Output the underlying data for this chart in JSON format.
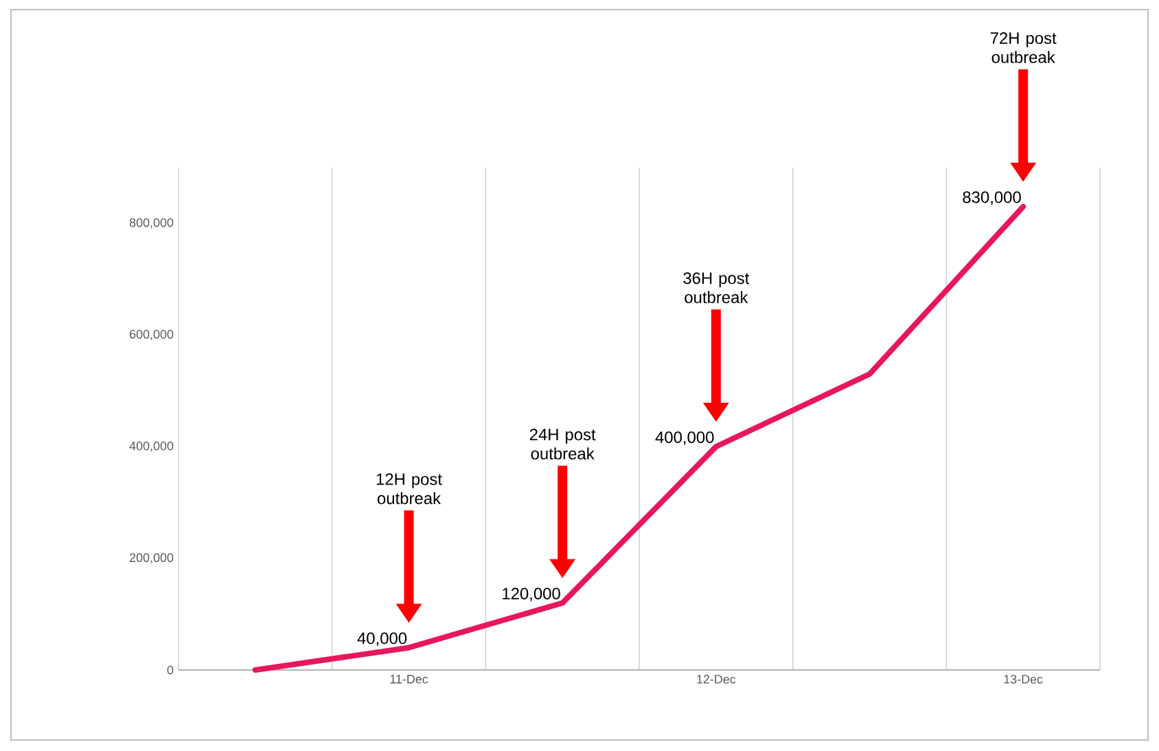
{
  "chart_data": {
    "type": "line",
    "categories": [
      null,
      "11-Dec",
      null,
      "12-Dec",
      null,
      "13-Dec"
    ],
    "series": [
      {
        "color": "#e8175d",
        "values": [
          0,
          40000,
          120000,
          400000,
          530000,
          830000
        ],
        "value_labels": [
          null,
          "40,000",
          "120,000",
          "400,000",
          null,
          "830,000"
        ]
      }
    ],
    "ylim": [
      0,
      900000
    ],
    "yticks": [
      {
        "value": 0,
        "label": "0"
      },
      {
        "value": 200000,
        "label": "200,000"
      },
      {
        "value": 400000,
        "label": "400,000"
      },
      {
        "value": 600000,
        "label": "600,000"
      },
      {
        "value": 800000,
        "label": "800,000"
      }
    ],
    "grid": "x",
    "marker": "none",
    "line_style": "solid",
    "annotations": [
      "12H post outbreak",
      "24H post outbreak",
      "36H post outbreak",
      "72H post outbreak"
    ]
  }
}
